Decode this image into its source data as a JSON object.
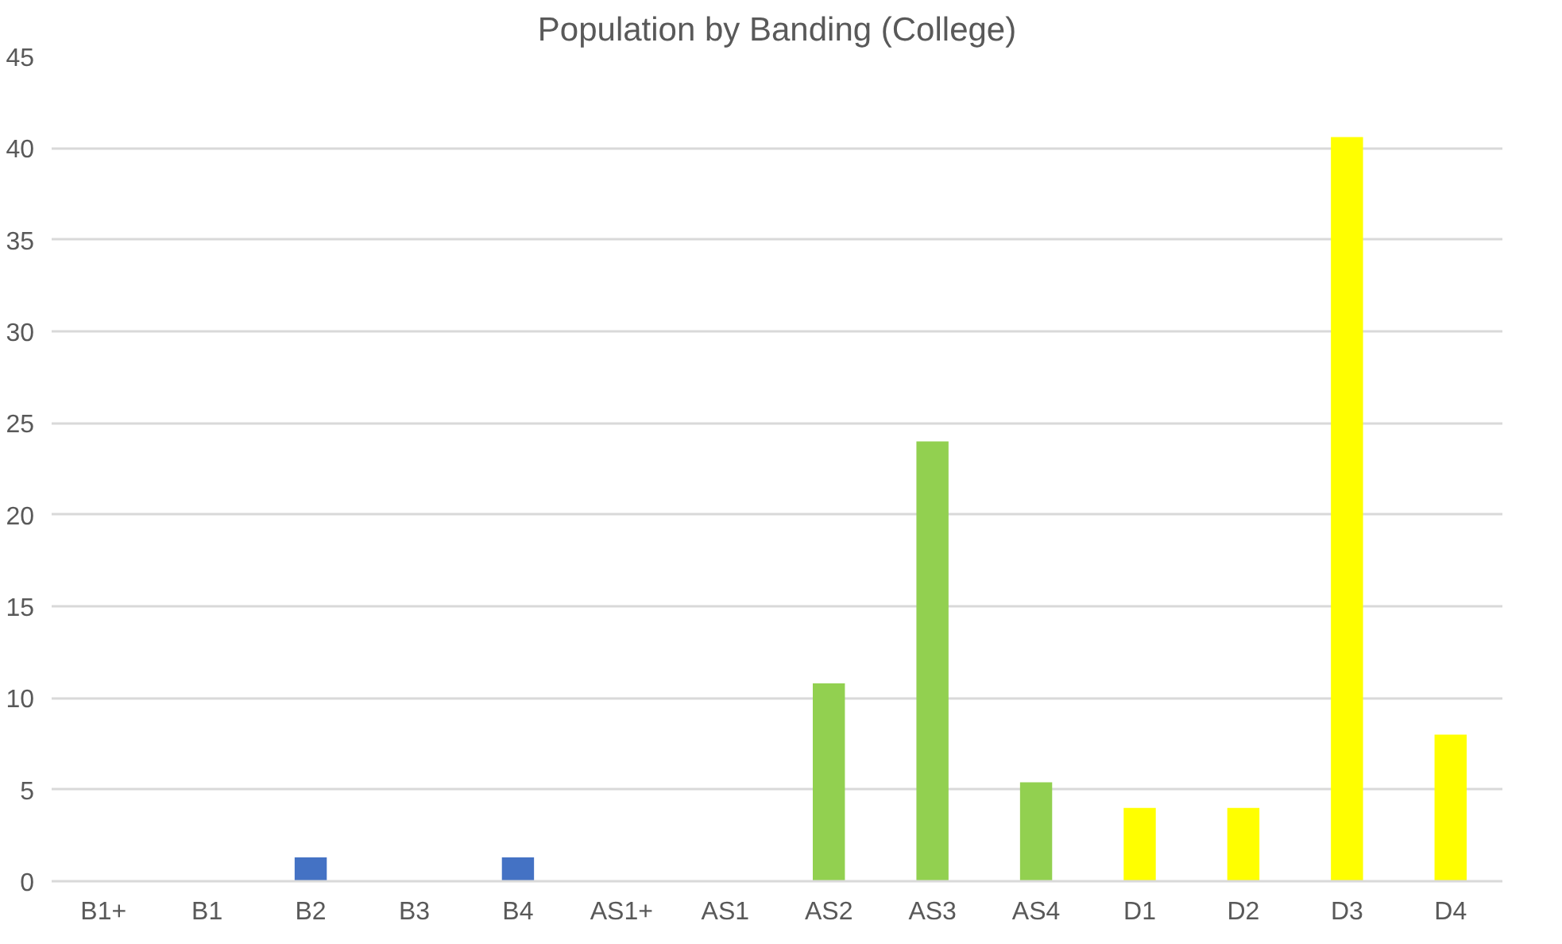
{
  "chart_data": {
    "type": "bar",
    "title": "Population by Banding (College)",
    "categories": [
      "B1+",
      "B1",
      "B2",
      "B3",
      "B4",
      "AS1+",
      "AS1",
      "AS2",
      "AS3",
      "AS4",
      "D1",
      "D2",
      "D3",
      "D4"
    ],
    "values": [
      0,
      0,
      1.3,
      0,
      1.3,
      0,
      0,
      10.8,
      24,
      5.4,
      4,
      4,
      40.6,
      8
    ],
    "colors": [
      "#4472c4",
      "#4472c4",
      "#4472c4",
      "#4472c4",
      "#4472c4",
      "#92d050",
      "#92d050",
      "#92d050",
      "#92d050",
      "#92d050",
      "#ffff00",
      "#ffff00",
      "#ffff00",
      "#ffff00"
    ],
    "ylim": [
      0,
      45
    ],
    "yticks": [
      0,
      5,
      10,
      15,
      20,
      25,
      30,
      35,
      40,
      45
    ],
    "grid": "y"
  }
}
